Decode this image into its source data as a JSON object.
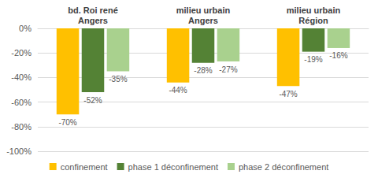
{
  "chart_data": {
    "type": "bar",
    "categories": [
      "bd. Roi rené\nAngers",
      "milieu urbain\nAngers",
      "milieu urbain\nRégion"
    ],
    "series": [
      {
        "name": "confinement",
        "color": "#ffc000",
        "values": [
          -70,
          -44,
          -47
        ],
        "value_labels": [
          "-70%",
          "-44%",
          "-47%"
        ]
      },
      {
        "name": "phase 1 déconfinement",
        "color": "#548235",
        "values": [
          -52,
          -28,
          -19
        ],
        "value_labels": [
          "-52%",
          "-28%",
          "-19%"
        ]
      },
      {
        "name": "phase 2 déconfinement",
        "color": "#a9d18e",
        "values": [
          -35,
          -27,
          -16
        ],
        "value_labels": [
          "-35%",
          "-27%",
          "-16%"
        ]
      }
    ],
    "ylim": [
      -100,
      0
    ],
    "yticks": [
      {
        "value": -100,
        "label": "-100%"
      },
      {
        "value": -80,
        "label": "-80%"
      },
      {
        "value": -60,
        "label": "-60%"
      },
      {
        "value": -40,
        "label": "-40%"
      },
      {
        "value": -20,
        "label": "-20%"
      },
      {
        "value": 0,
        "label": "0%"
      }
    ],
    "grid": true,
    "legend": "bottom",
    "data_labels": true
  }
}
